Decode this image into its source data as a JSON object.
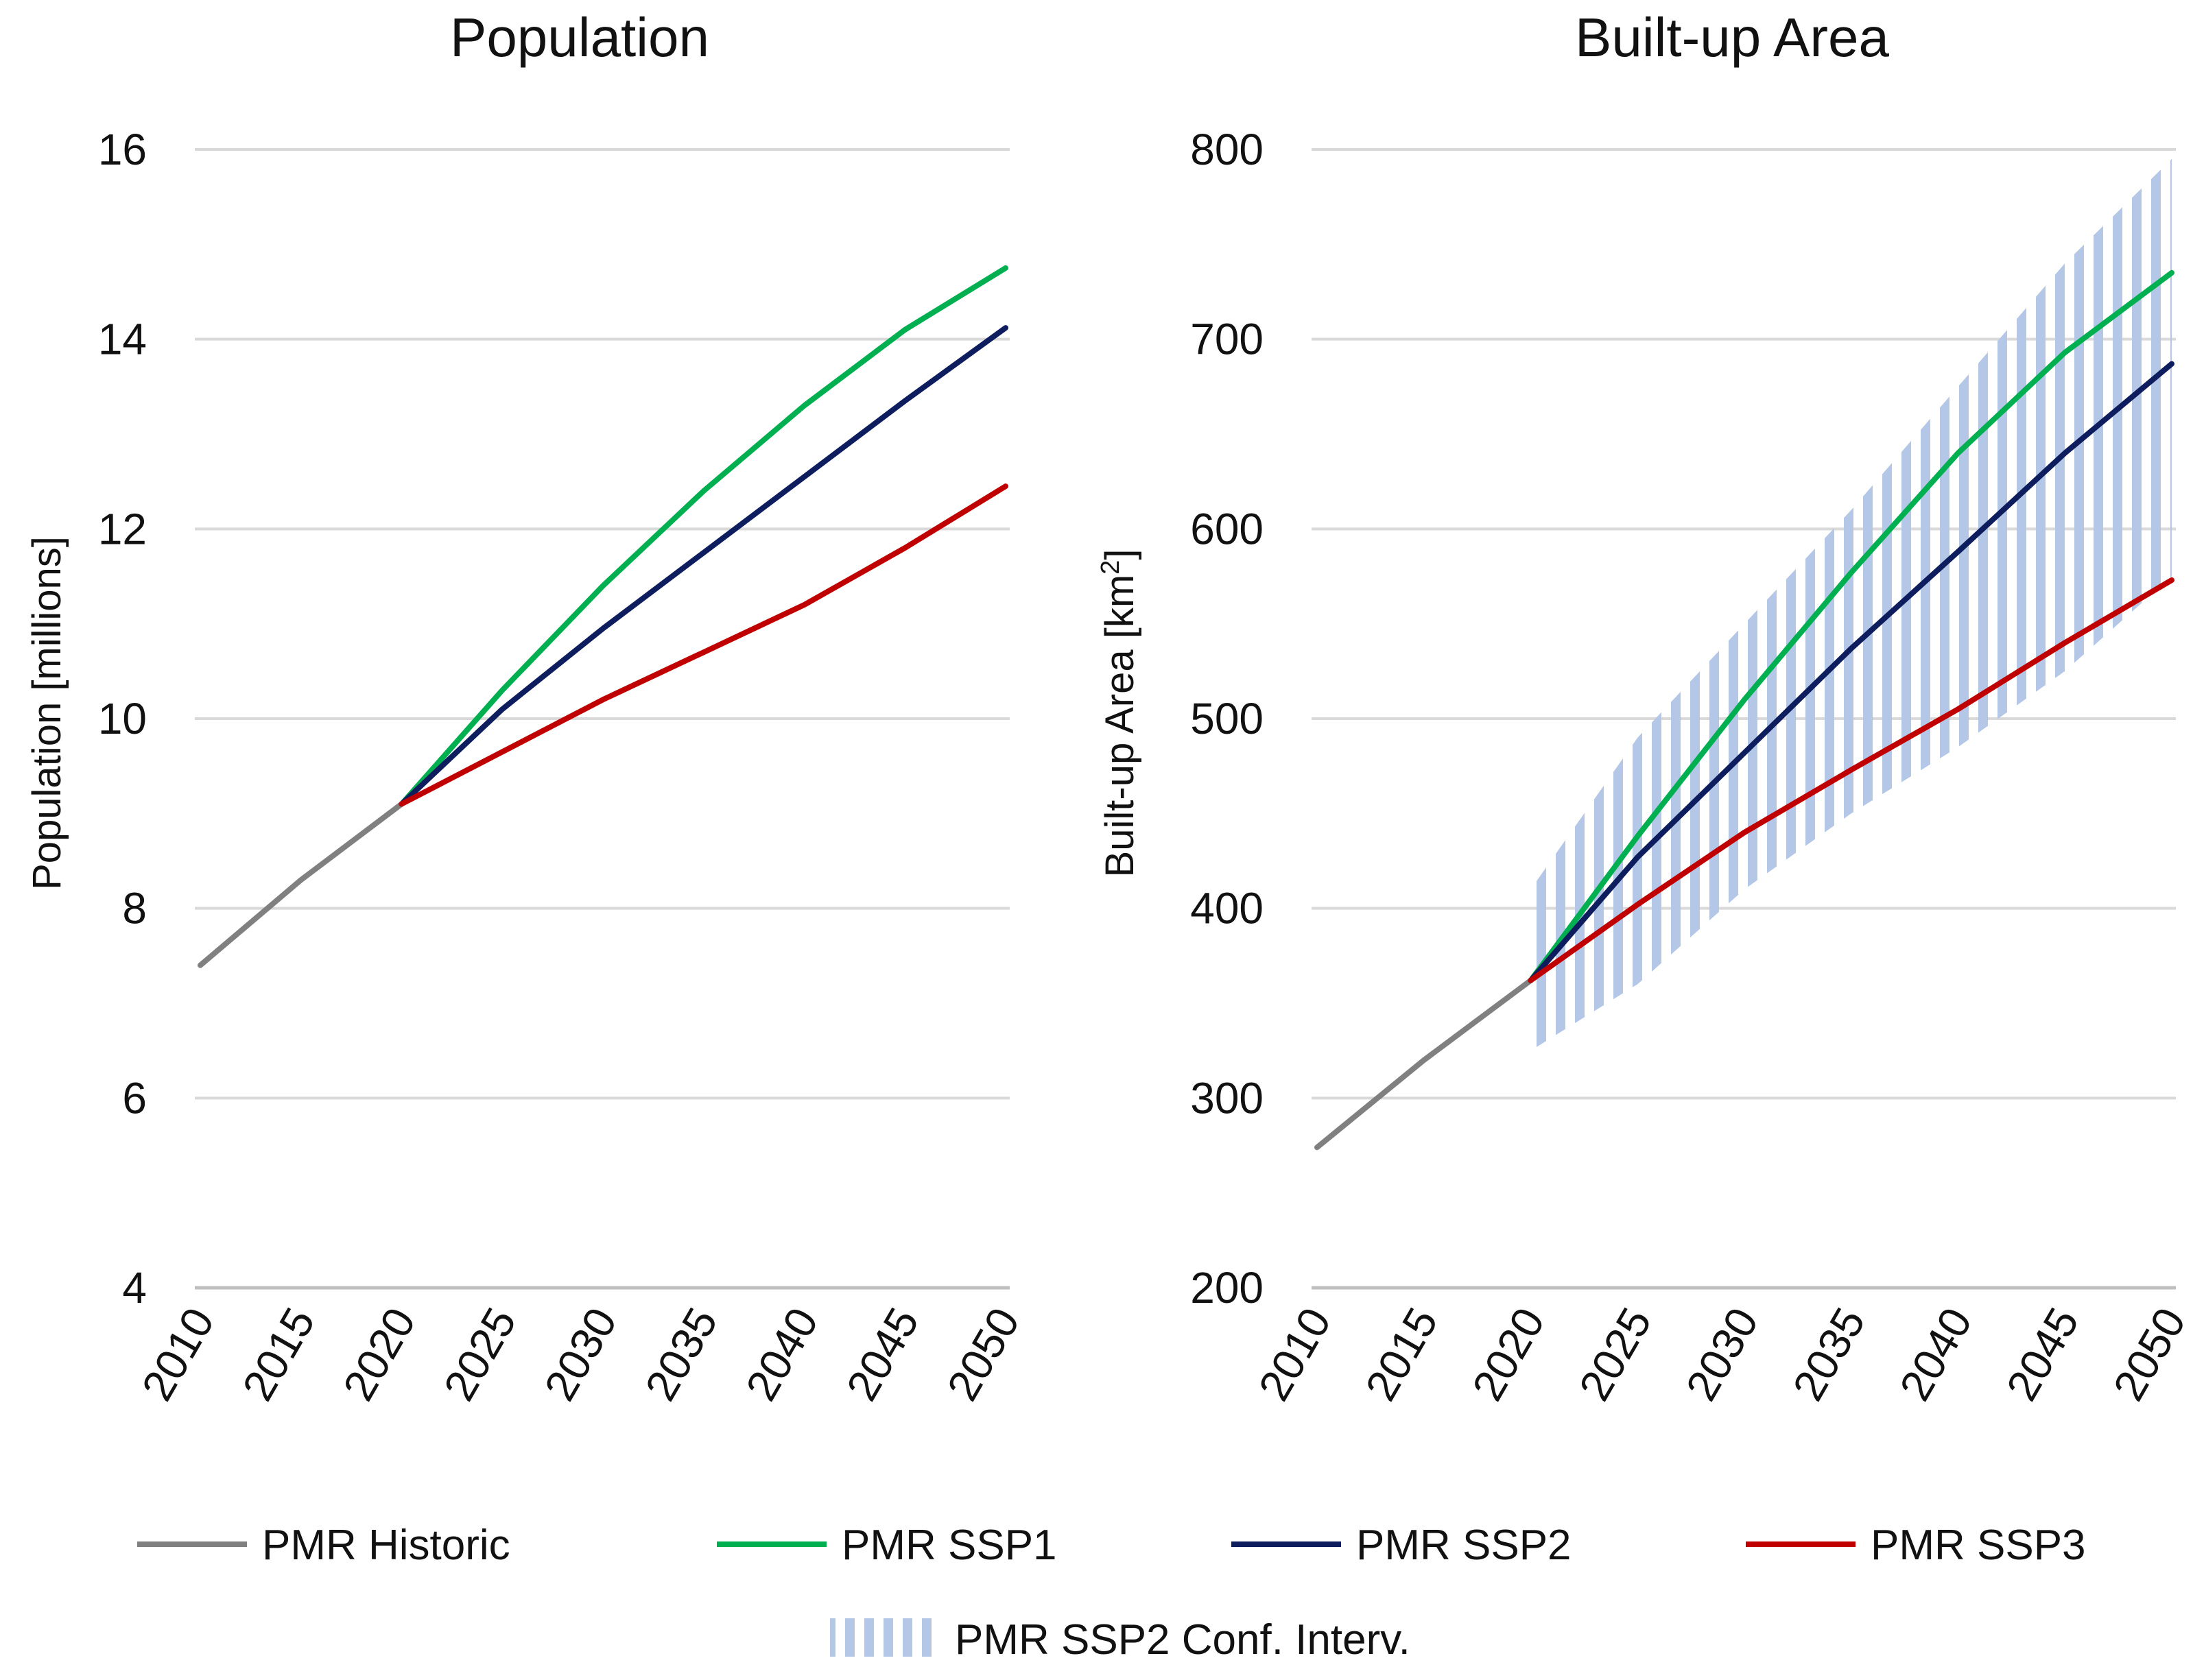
{
  "chart_data": [
    {
      "type": "line",
      "title": "Population",
      "xlabel": "",
      "ylabel": "Population [millions]",
      "xlim": [
        2010,
        2050
      ],
      "ylim": [
        4,
        16
      ],
      "x_ticks": [
        "2010",
        "2015",
        "2020",
        "2025",
        "2030",
        "2035",
        "2040",
        "2045",
        "2050"
      ],
      "y_ticks": [
        "4",
        "6",
        "8",
        "10",
        "12",
        "14",
        "16"
      ],
      "grid": true,
      "series": [
        {
          "name": "PMR Historic",
          "color": "#808080",
          "x": [
            2010,
            2015,
            2020
          ],
          "y": [
            7.4,
            8.3,
            9.1
          ]
        },
        {
          "name": "PMR SSP1",
          "color": "#00b050",
          "x": [
            2020,
            2025,
            2030,
            2035,
            2040,
            2045,
            2050
          ],
          "y": [
            9.1,
            10.3,
            11.4,
            12.4,
            13.3,
            14.1,
            14.75
          ]
        },
        {
          "name": "PMR SSP2",
          "color": "#0d1d5e",
          "x": [
            2020,
            2025,
            2030,
            2035,
            2040,
            2045,
            2050
          ],
          "y": [
            9.1,
            10.1,
            10.95,
            11.75,
            12.55,
            13.35,
            14.12
          ]
        },
        {
          "name": "PMR SSP3",
          "color": "#c00000",
          "x": [
            2020,
            2025,
            2030,
            2035,
            2040,
            2045,
            2050
          ],
          "y": [
            9.1,
            9.65,
            10.2,
            10.7,
            11.2,
            11.8,
            12.45
          ]
        }
      ]
    },
    {
      "type": "line",
      "title": "Built-up Area",
      "xlabel": "",
      "ylabel": "Built-up Area [km",
      "ylabel_sup": "2",
      "ylabel_end": "]",
      "xlim": [
        2010,
        2050
      ],
      "ylim": [
        200,
        800
      ],
      "x_ticks": [
        "2010",
        "2015",
        "2020",
        "2025",
        "2030",
        "2035",
        "2040",
        "2045",
        "2050"
      ],
      "y_ticks": [
        "200",
        "300",
        "400",
        "500",
        "600",
        "700",
        "800"
      ],
      "grid": true,
      "series": [
        {
          "name": "PMR Historic",
          "color": "#808080",
          "x": [
            2010,
            2015,
            2020
          ],
          "y": [
            274,
            320,
            362
          ]
        },
        {
          "name": "PMR SSP1",
          "color": "#00b050",
          "x": [
            2020,
            2025,
            2030,
            2035,
            2040,
            2045,
            2050
          ],
          "y": [
            362,
            438,
            510,
            577,
            640,
            693,
            735
          ]
        },
        {
          "name": "PMR SSP2",
          "color": "#0d1d5e",
          "x": [
            2020,
            2025,
            2030,
            2035,
            2040,
            2045,
            2050
          ],
          "y": [
            362,
            427,
            482,
            537,
            588,
            640,
            687
          ]
        },
        {
          "name": "PMR SSP3",
          "color": "#c00000",
          "x": [
            2020,
            2025,
            2030,
            2035,
            2040,
            2045,
            2050
          ],
          "y": [
            362,
            402,
            440,
            473,
            505,
            540,
            573
          ]
        }
      ],
      "band": {
        "name": "PMR SSP2 Conf. Interv.",
        "color": "#b4c7e7",
        "x": [
          2020,
          2025,
          2030,
          2035,
          2040,
          2045,
          2050
        ],
        "lower": [
          325,
          360,
          410,
          450,
          485,
          525,
          575
        ],
        "upper": [
          410,
          490,
          550,
          610,
          675,
          740,
          795
        ]
      }
    }
  ],
  "legend": {
    "placement": "bottom",
    "items": [
      {
        "label": "PMR Historic",
        "color": "#808080"
      },
      {
        "label": "PMR SSP1",
        "color": "#00b050"
      },
      {
        "label": "PMR SSP2",
        "color": "#0d1d5e"
      },
      {
        "label": "PMR SSP3",
        "color": "#c00000"
      },
      {
        "label": "PMR SSP2 Conf. Interv.",
        "color": "#b4c7e7"
      }
    ]
  }
}
